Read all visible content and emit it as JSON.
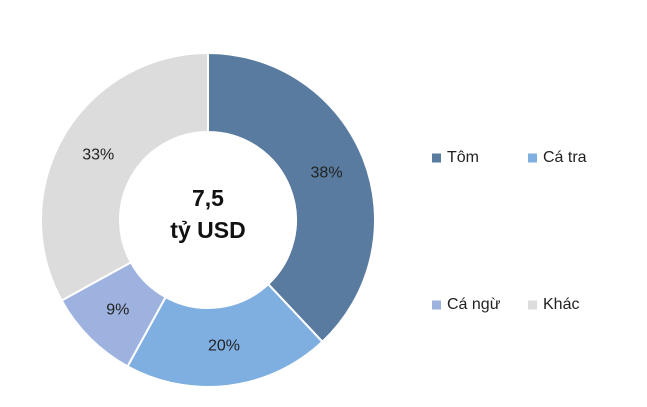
{
  "chart_data": {
    "type": "donut",
    "annotations": [
      "7,5",
      "tỷ USD"
    ],
    "categories": [
      "Tôm",
      "Cá tra",
      "Cá ngừ",
      "Khác"
    ],
    "values": [
      38,
      20,
      9,
      33
    ],
    "value_labels": [
      "38%",
      "20%",
      "9%",
      "33%"
    ],
    "colors": [
      "#587b9f",
      "#7eafe0",
      "#9eb2e0",
      "#dcdcdc"
    ],
    "legend": "right"
  }
}
